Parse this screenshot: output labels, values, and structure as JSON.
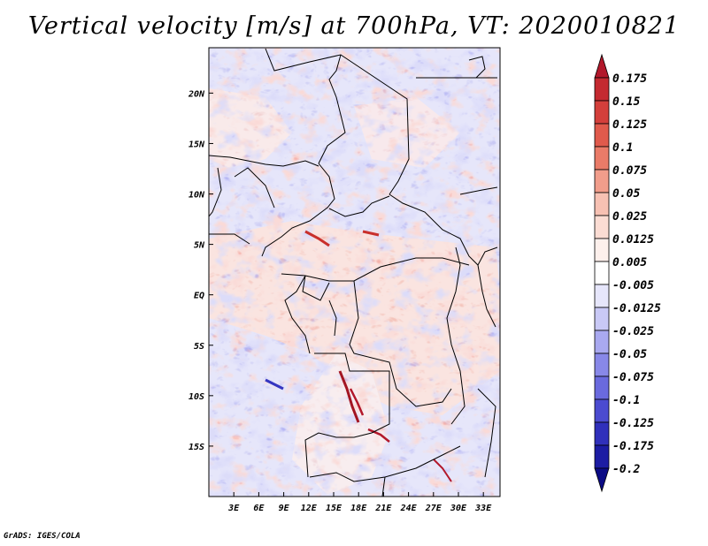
{
  "chart_data": {
    "type": "heatmap",
    "title": "Vertical velocity [m/s] at 700hPa, VT: 2020010821",
    "variable": "Vertical velocity",
    "units": "m/s",
    "pressure_level": "700hPa",
    "valid_time": "2020010821",
    "lon_range": [
      0,
      35
    ],
    "lat_range": [
      -20,
      24.5
    ],
    "x_ticks": [
      3,
      6,
      9,
      12,
      15,
      18,
      21,
      24,
      27,
      30,
      33
    ],
    "x_tick_labels": [
      "3E",
      "6E",
      "9E",
      "12E",
      "15E",
      "18E",
      "21E",
      "24E",
      "27E",
      "30E",
      "33E"
    ],
    "y_ticks": [
      20,
      15,
      10,
      5,
      0,
      -5,
      -10,
      -15
    ],
    "y_tick_labels": [
      "20N",
      "15N",
      "10N",
      "5N",
      "EQ",
      "5S",
      "10S",
      "15S"
    ],
    "colorbar": {
      "levels": [
        "0.175",
        "0.15",
        "0.125",
        "0.1",
        "0.075",
        "0.05",
        "0.025",
        "0.0125",
        "0.005",
        "-0.005",
        "-0.0125",
        "-0.025",
        "-0.05",
        "-0.075",
        "-0.1",
        "-0.125",
        "-0.175",
        "-0.2"
      ],
      "colors": [
        "#b2182b",
        "#c42a31",
        "#d43f3b",
        "#e05a4c",
        "#ea7b68",
        "#f19d8b",
        "#f7c1b3",
        "#fbdcd3",
        "#fdf0ec",
        "#ffffff",
        "#e6e6fb",
        "#c9c9f6",
        "#a9a9f0",
        "#8888e8",
        "#6a6ade",
        "#4b4bd0",
        "#3030bb",
        "#1c1ca3",
        "#0b0b85"
      ]
    }
  },
  "credit": "GrADS: IGES/COLA"
}
